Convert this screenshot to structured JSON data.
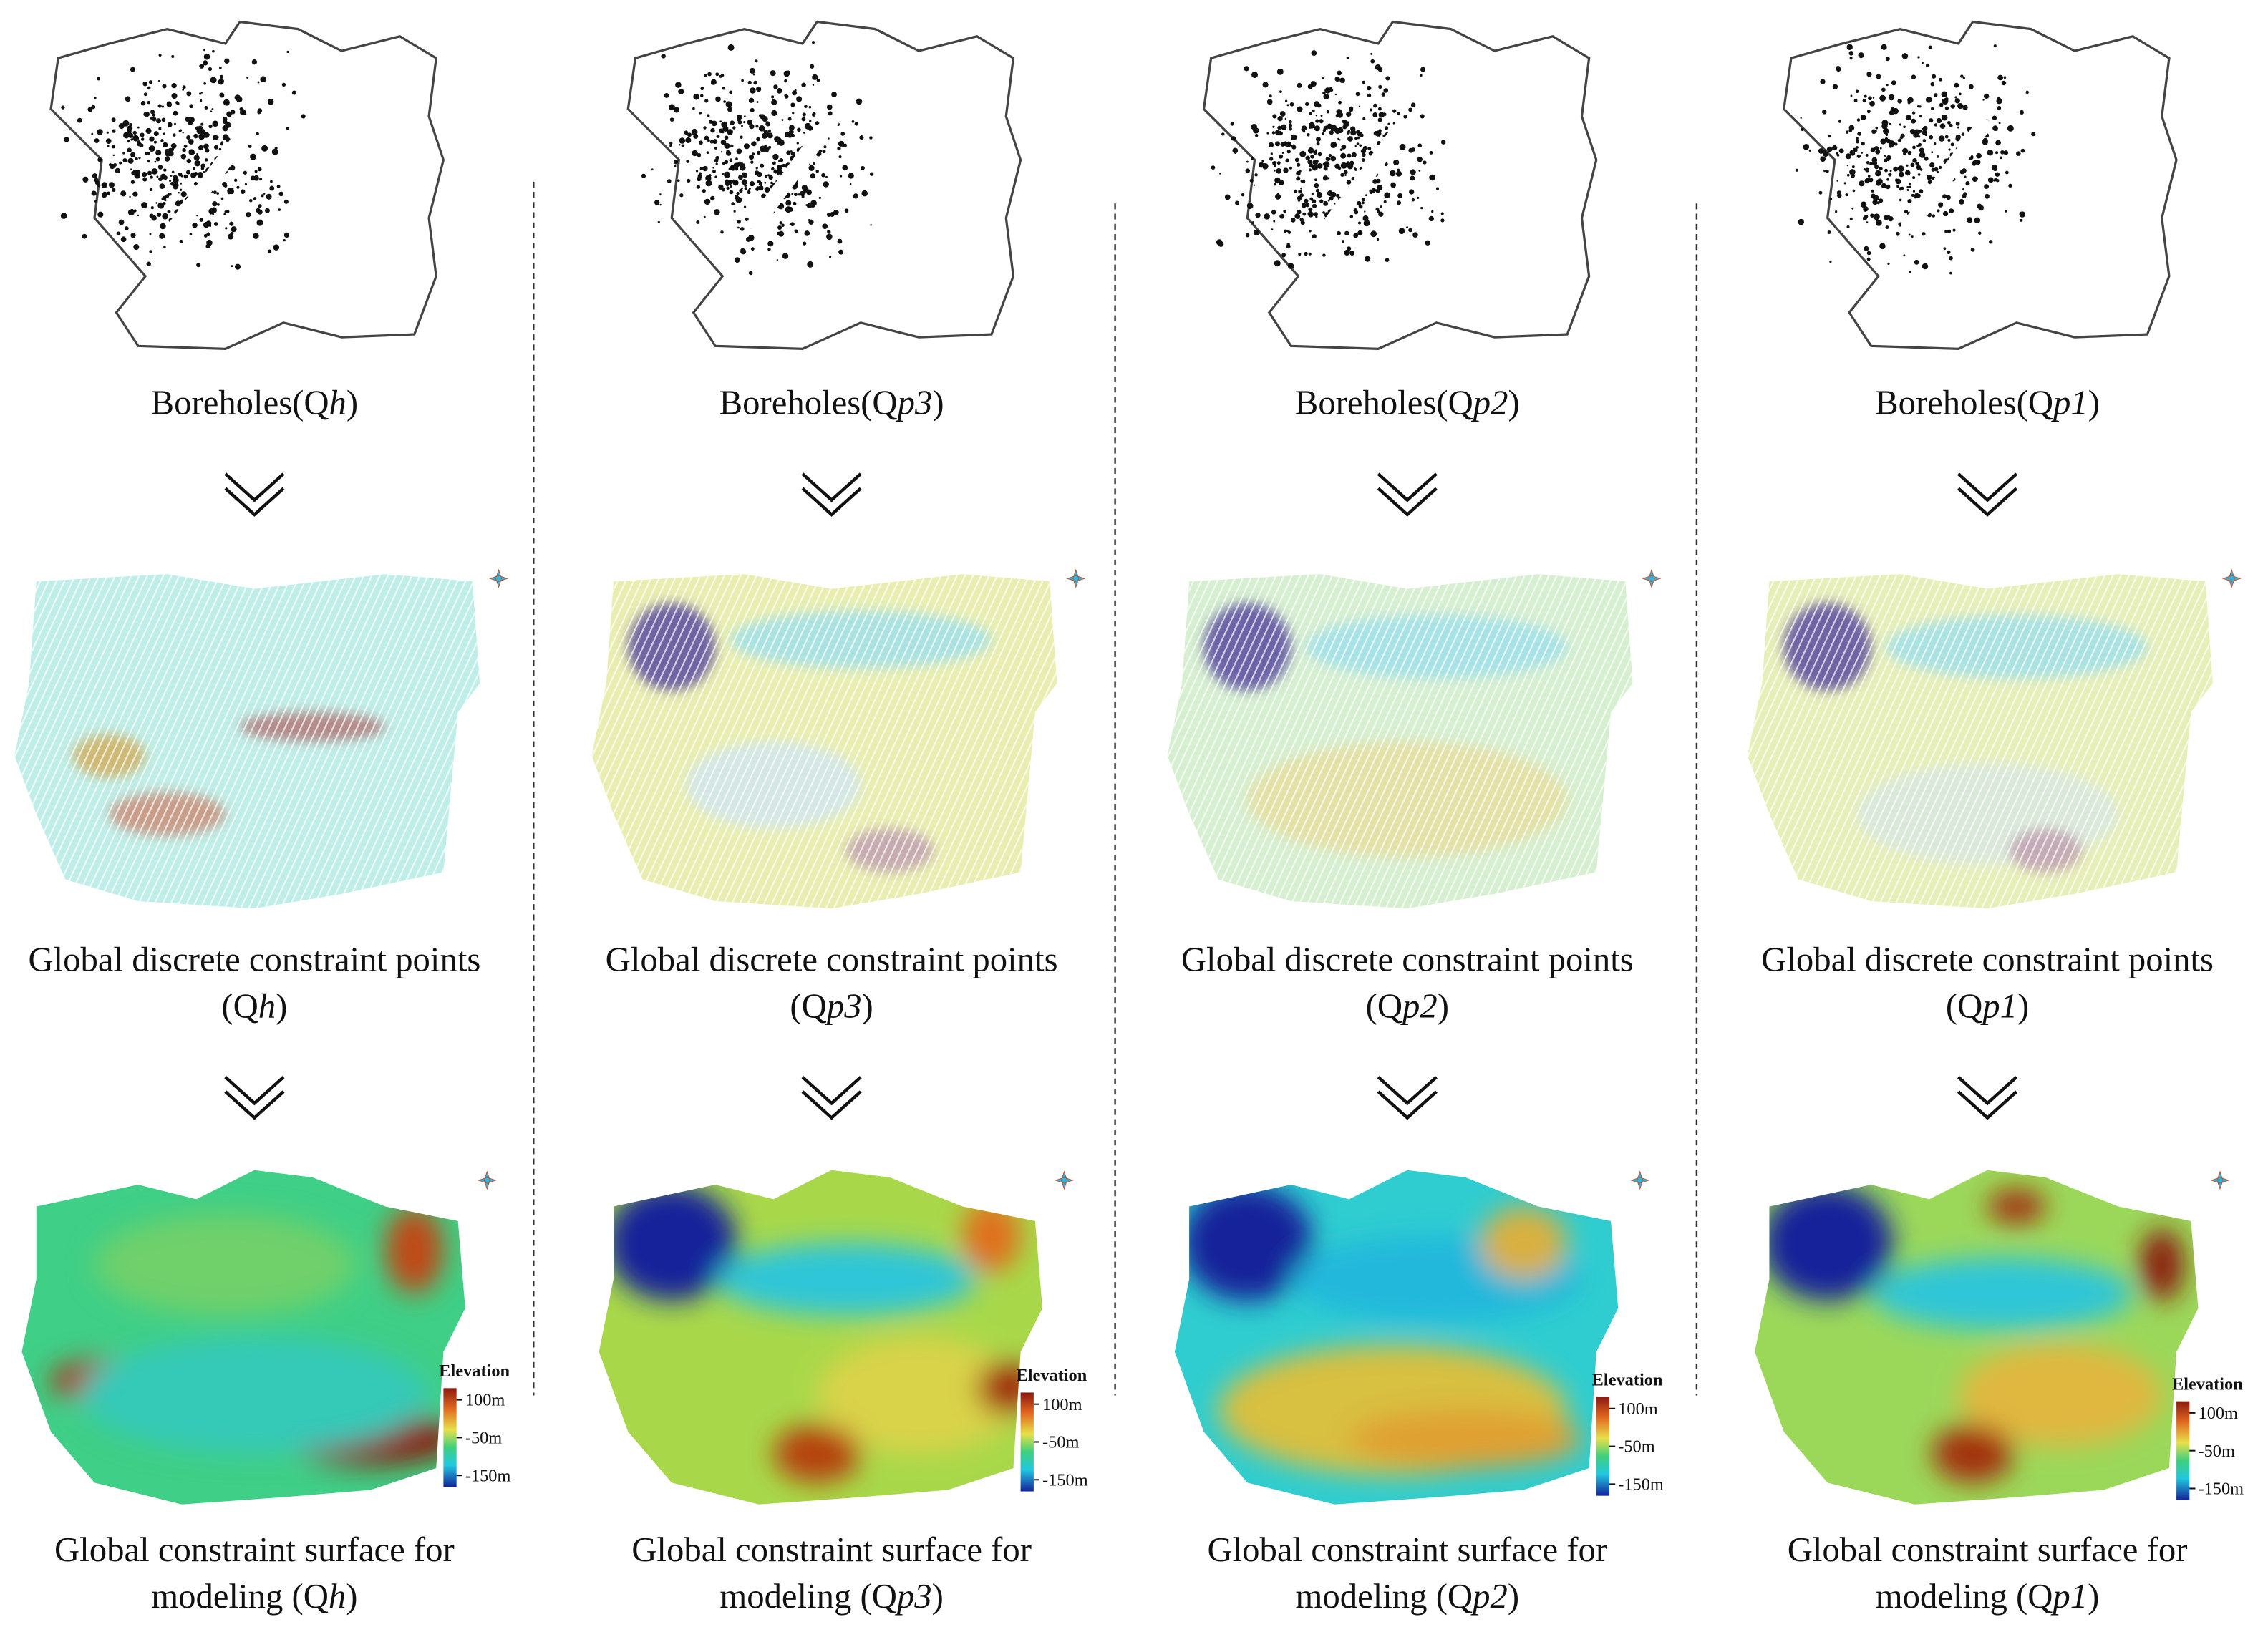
{
  "columns": [
    {
      "boreholes": {
        "before": "Boreholes(Q",
        "italic": "h",
        "after": ")"
      },
      "points": {
        "line1": "Global discrete constraint points",
        "before": "(Q",
        "italic": "h",
        "after": ")"
      },
      "surface": {
        "line1": "Global constraint surface for",
        "before": "modeling (Q",
        "italic": "h",
        "after": ")"
      },
      "legend": {
        "title": "Elevation",
        "ticks": [
          "100m",
          "-50m",
          "-150m"
        ]
      }
    },
    {
      "boreholes": {
        "before": "Boreholes(Q",
        "italic": "p3",
        "after": ")"
      },
      "points": {
        "line1": "Global discrete constraint points",
        "before": "(Q",
        "italic": "p3",
        "after": ")"
      },
      "surface": {
        "line1": "Global constraint surface for",
        "before": "modeling (Q",
        "italic": "p3",
        "after": ")"
      },
      "legend": {
        "title": "Elevation",
        "ticks": [
          "100m",
          "-50m",
          "-150m"
        ]
      }
    },
    {
      "boreholes": {
        "before": "Boreholes(Q",
        "italic": "p2",
        "after": ")"
      },
      "points": {
        "line1": "Global discrete constraint points",
        "before": "(Q",
        "italic": "p2",
        "after": ")"
      },
      "surface": {
        "line1": "Global constraint surface for",
        "before": "modeling (Q",
        "italic": "p2",
        "after": ")"
      },
      "legend": {
        "title": "Elevation",
        "ticks": [
          "100m",
          "-50m",
          "-150m"
        ]
      }
    },
    {
      "boreholes": {
        "before": "Boreholes(Q",
        "italic": "p1",
        "after": ")"
      },
      "points": {
        "line1": "Global discrete constraint points",
        "before": "(Q",
        "italic": "p1",
        "after": ")"
      },
      "surface": {
        "line1": "Global constraint surface for",
        "before": "modeling (Q",
        "italic": "p1",
        "after": ")"
      },
      "legend": {
        "title": "Elevation",
        "ticks": [
          "100m",
          "-50m",
          "-150m"
        ]
      }
    }
  ]
}
